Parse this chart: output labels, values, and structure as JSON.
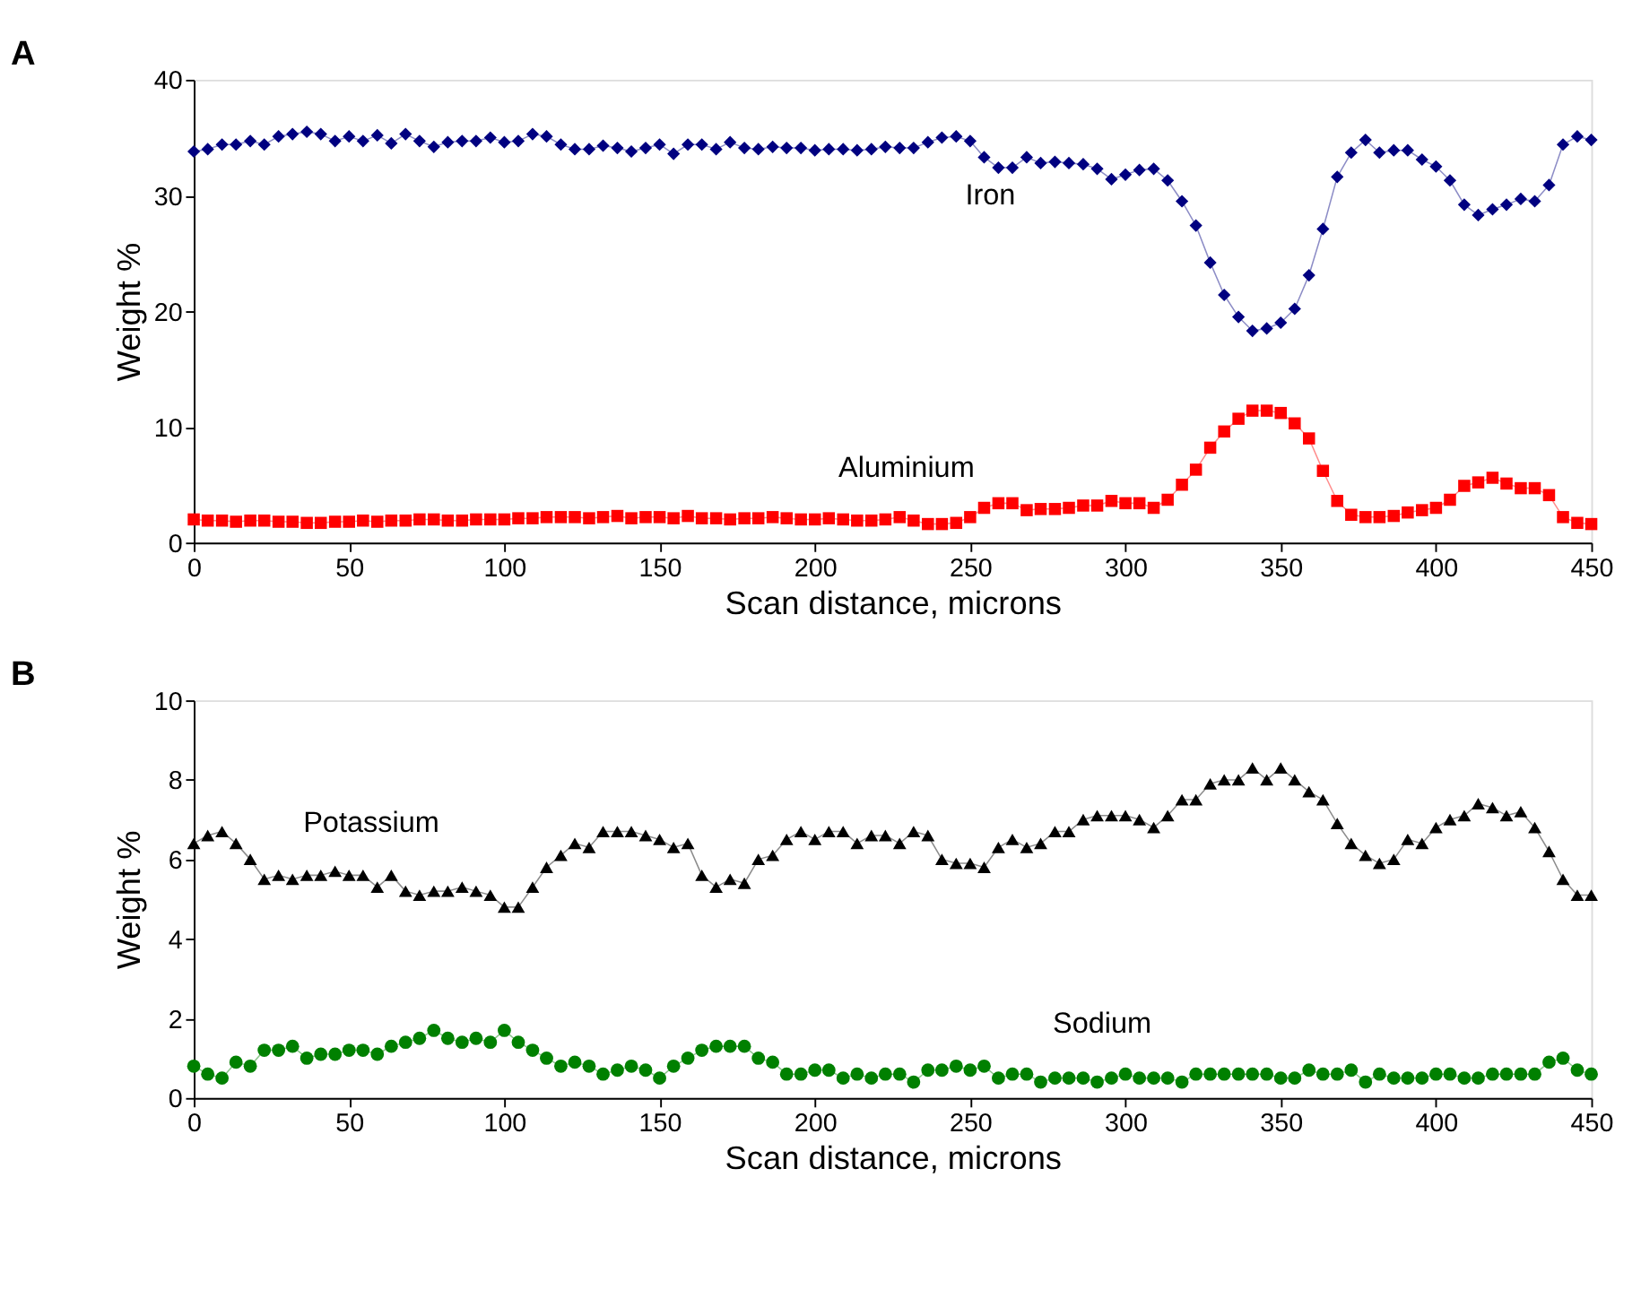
{
  "chart_data": [
    {
      "type": "line",
      "title": "A",
      "xlabel": "Scan distance, microns",
      "ylabel": "Weight %",
      "xlim": [
        0,
        450
      ],
      "xticks": [
        0,
        50,
        100,
        150,
        200,
        250,
        300,
        350,
        400,
        450
      ],
      "ylim": [
        0,
        40
      ],
      "yticks": [
        0,
        10,
        20,
        30,
        40
      ],
      "grid": false,
      "line_style": "solid",
      "x": [
        0,
        4.5,
        9.1,
        13.6,
        18.2,
        22.7,
        27.3,
        31.8,
        36.4,
        40.9,
        45.5,
        50,
        54.5,
        59.1,
        63.6,
        68.2,
        72.7,
        77.3,
        81.8,
        86.4,
        90.9,
        95.5,
        100,
        104.5,
        109.1,
        113.6,
        118.2,
        122.7,
        127.3,
        131.8,
        136.4,
        140.9,
        145.5,
        150,
        154.5,
        159.1,
        163.6,
        168.2,
        172.7,
        177.3,
        181.8,
        186.4,
        190.9,
        195.5,
        200,
        204.5,
        209.1,
        213.6,
        218.2,
        222.7,
        227.3,
        231.8,
        236.4,
        240.9,
        245.5,
        250,
        254.5,
        259.1,
        263.6,
        268.2,
        272.7,
        277.3,
        281.8,
        286.4,
        290.9,
        295.5,
        300,
        304.5,
        309.1,
        313.6,
        318.2,
        322.7,
        327.3,
        331.8,
        336.4,
        340.9,
        345.5,
        350,
        354.5,
        359.1,
        363.6,
        368.2,
        372.7,
        377.3,
        381.8,
        386.4,
        390.9,
        395.5,
        400,
        404.5,
        409.1,
        413.6,
        418.2,
        422.7,
        427.3,
        431.8,
        436.4,
        440.9,
        445.5,
        450
      ],
      "series": [
        {
          "name": "Iron",
          "color": "#000080",
          "marker": "diamond",
          "values": [
            33.8,
            34.0,
            34.4,
            34.4,
            34.7,
            34.4,
            35.1,
            35.3,
            35.5,
            35.3,
            34.7,
            35.1,
            34.7,
            35.2,
            34.5,
            35.3,
            34.7,
            34.2,
            34.6,
            34.7,
            34.7,
            35.0,
            34.6,
            34.7,
            35.3,
            35.1,
            34.4,
            34.0,
            34.0,
            34.3,
            34.1,
            33.8,
            34.1,
            34.4,
            33.6,
            34.4,
            34.4,
            34.0,
            34.6,
            34.1,
            34.0,
            34.2,
            34.1,
            34.1,
            33.9,
            34.0,
            34.0,
            33.9,
            34.0,
            34.2,
            34.1,
            34.1,
            34.6,
            35.0,
            35.1,
            34.7,
            33.3,
            32.4,
            32.4,
            33.3,
            32.8,
            32.9,
            32.8,
            32.7,
            32.3,
            31.4,
            31.8,
            32.2,
            32.3,
            31.3,
            29.5,
            27.4,
            24.2,
            21.4,
            19.5,
            18.3,
            18.5,
            19.0,
            20.2,
            23.1,
            27.1,
            31.6,
            33.7,
            34.8,
            33.7,
            33.9,
            33.9,
            33.1,
            32.5,
            31.3,
            29.2,
            28.3,
            28.8,
            29.2,
            29.7,
            29.5,
            30.9,
            34.4,
            35.1,
            34.8
          ]
        },
        {
          "name": "Aluminium",
          "color": "#ff0000",
          "marker": "square",
          "values": [
            2.0,
            1.9,
            1.9,
            1.8,
            1.9,
            1.9,
            1.8,
            1.8,
            1.7,
            1.7,
            1.8,
            1.8,
            1.9,
            1.8,
            1.9,
            1.9,
            2.0,
            2.0,
            1.9,
            1.9,
            2.0,
            2.0,
            2.0,
            2.1,
            2.1,
            2.2,
            2.2,
            2.2,
            2.1,
            2.2,
            2.3,
            2.1,
            2.2,
            2.2,
            2.1,
            2.3,
            2.1,
            2.1,
            2.0,
            2.1,
            2.1,
            2.2,
            2.1,
            2.0,
            2.0,
            2.1,
            2.0,
            1.9,
            1.9,
            2.0,
            2.2,
            1.9,
            1.6,
            1.6,
            1.7,
            2.2,
            3.0,
            3.4,
            3.4,
            2.8,
            2.9,
            2.9,
            3.0,
            3.2,
            3.2,
            3.6,
            3.4,
            3.4,
            3.0,
            3.7,
            5.0,
            6.3,
            8.2,
            9.6,
            10.7,
            11.4,
            11.4,
            11.2,
            10.3,
            9.0,
            6.2,
            3.6,
            2.4,
            2.2,
            2.2,
            2.3,
            2.6,
            2.8,
            3.0,
            3.7,
            4.9,
            5.2,
            5.6,
            5.1,
            4.7,
            4.7,
            4.1,
            2.2,
            1.7,
            1.6
          ]
        }
      ]
    },
    {
      "type": "line",
      "title": "B",
      "xlabel": "Scan distance, microns",
      "ylabel": "Weight %",
      "xlim": [
        0,
        450
      ],
      "xticks": [
        0,
        50,
        100,
        150,
        200,
        250,
        300,
        350,
        400,
        450
      ],
      "ylim": [
        0,
        10
      ],
      "yticks": [
        0,
        2,
        4,
        6,
        8,
        10
      ],
      "grid": false,
      "line_style": "solid",
      "x": [
        0,
        4.5,
        9.1,
        13.6,
        18.2,
        22.7,
        27.3,
        31.8,
        36.4,
        40.9,
        45.5,
        50,
        54.5,
        59.1,
        63.6,
        68.2,
        72.7,
        77.3,
        81.8,
        86.4,
        90.9,
        95.5,
        100,
        104.5,
        109.1,
        113.6,
        118.2,
        122.7,
        127.3,
        131.8,
        136.4,
        140.9,
        145.5,
        150,
        154.5,
        159.1,
        163.6,
        168.2,
        172.7,
        177.3,
        181.8,
        186.4,
        190.9,
        195.5,
        200,
        204.5,
        209.1,
        213.6,
        218.2,
        222.7,
        227.3,
        231.8,
        236.4,
        240.9,
        245.5,
        250,
        254.5,
        259.1,
        263.6,
        268.2,
        272.7,
        277.3,
        281.8,
        286.4,
        290.9,
        295.5,
        300,
        304.5,
        309.1,
        313.6,
        318.2,
        322.7,
        327.3,
        331.8,
        336.4,
        340.9,
        345.5,
        350,
        354.5,
        359.1,
        363.6,
        368.2,
        372.7,
        377.3,
        381.8,
        386.4,
        390.9,
        395.5,
        400,
        404.5,
        409.1,
        413.6,
        418.2,
        422.7,
        427.3,
        431.8,
        436.4,
        440.9,
        445.5,
        450
      ],
      "series": [
        {
          "name": "Potassium",
          "color": "#000000",
          "marker": "triangle",
          "values": [
            6.4,
            6.6,
            6.7,
            6.4,
            6.0,
            5.5,
            5.6,
            5.5,
            5.6,
            5.6,
            5.7,
            5.6,
            5.6,
            5.3,
            5.6,
            5.2,
            5.1,
            5.2,
            5.2,
            5.3,
            5.2,
            5.1,
            4.8,
            4.8,
            5.3,
            5.8,
            6.1,
            6.4,
            6.3,
            6.7,
            6.7,
            6.7,
            6.6,
            6.5,
            6.3,
            6.4,
            5.6,
            5.3,
            5.5,
            5.4,
            6.0,
            6.1,
            6.5,
            6.7,
            6.5,
            6.7,
            6.7,
            6.4,
            6.6,
            6.6,
            6.4,
            6.7,
            6.6,
            6.0,
            5.9,
            5.9,
            5.8,
            6.3,
            6.5,
            6.3,
            6.4,
            6.7,
            6.7,
            7.0,
            7.1,
            7.1,
            7.1,
            7.0,
            6.8,
            7.1,
            7.5,
            7.5,
            7.9,
            8.0,
            8.0,
            8.3,
            8.0,
            8.3,
            8.0,
            7.7,
            7.5,
            6.9,
            6.4,
            6.1,
            5.9,
            6.0,
            6.5,
            6.4,
            6.8,
            7.0,
            7.1,
            7.4,
            7.3,
            7.1,
            7.2,
            6.8,
            6.2,
            5.5,
            5.1,
            5.1
          ]
        },
        {
          "name": "Sodium",
          "color": "#008000",
          "marker": "circle",
          "values": [
            0.8,
            0.6,
            0.5,
            0.9,
            0.8,
            1.2,
            1.2,
            1.3,
            1.0,
            1.1,
            1.1,
            1.2,
            1.2,
            1.1,
            1.3,
            1.4,
            1.5,
            1.7,
            1.5,
            1.4,
            1.5,
            1.4,
            1.7,
            1.4,
            1.2,
            1.0,
            0.8,
            0.9,
            0.8,
            0.6,
            0.7,
            0.8,
            0.7,
            0.5,
            0.8,
            1.0,
            1.2,
            1.3,
            1.3,
            1.3,
            1.0,
            0.9,
            0.6,
            0.6,
            0.7,
            0.7,
            0.5,
            0.6,
            0.5,
            0.6,
            0.6,
            0.4,
            0.7,
            0.7,
            0.8,
            0.7,
            0.8,
            0.5,
            0.6,
            0.6,
            0.4,
            0.5,
            0.5,
            0.5,
            0.4,
            0.5,
            0.6,
            0.5,
            0.5,
            0.5,
            0.4,
            0.6,
            0.6,
            0.6,
            0.6,
            0.6,
            0.6,
            0.5,
            0.5,
            0.7,
            0.6,
            0.6,
            0.7,
            0.4,
            0.6,
            0.5,
            0.5,
            0.5,
            0.6,
            0.6,
            0.5,
            0.5,
            0.6,
            0.6,
            0.6,
            0.6,
            0.9,
            1.0,
            0.7,
            0.6
          ]
        }
      ]
    }
  ]
}
